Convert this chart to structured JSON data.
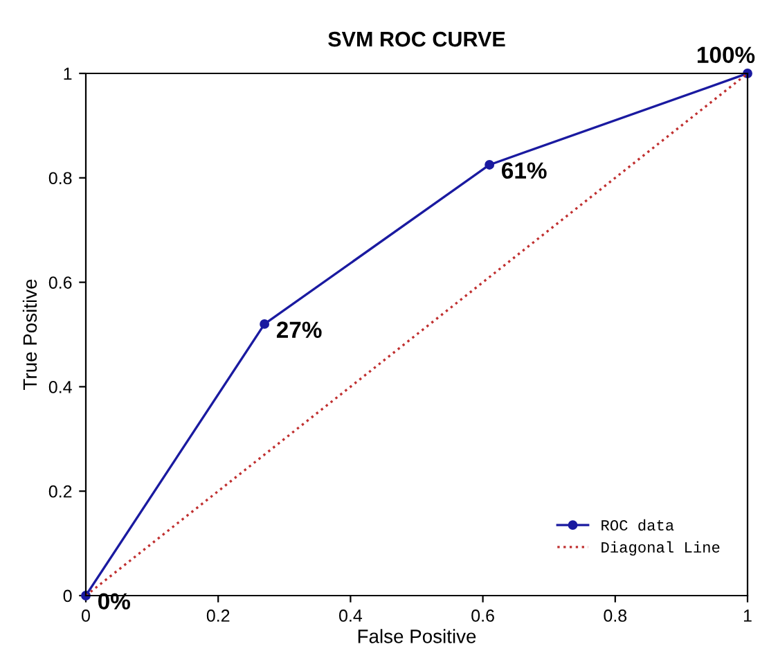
{
  "chart_data": {
    "type": "line",
    "title": "SVM ROC CURVE",
    "xlabel": "False Positive",
    "ylabel": "True Positive",
    "xlim": [
      0,
      1
    ],
    "ylim": [
      0,
      1
    ],
    "xticks": [
      0,
      0.2,
      0.4,
      0.6,
      0.8,
      1
    ],
    "yticks": [
      0,
      0.2,
      0.4,
      0.6,
      0.8,
      1
    ],
    "annotations": [
      {
        "text": "0%",
        "x": 0,
        "y": 0
      },
      {
        "text": "27%",
        "x": 0.27,
        "y": 0.52
      },
      {
        "text": "61%",
        "x": 0.61,
        "y": 0.825
      },
      {
        "text": "100%",
        "x": 1,
        "y": 1
      }
    ],
    "grid": false,
    "legend": "bottom right",
    "series": [
      {
        "name": "ROC data",
        "color": "#1a1aa0",
        "x": [
          0,
          0.27,
          0.61,
          1
        ],
        "values": [
          0,
          0.52,
          0.825,
          1
        ],
        "marker": "circle",
        "line_style": "solid"
      },
      {
        "name": "Diagonal Line",
        "color": "#c03030",
        "x": [
          0,
          1
        ],
        "values": [
          0,
          1
        ],
        "marker": "none",
        "line_style": "dotted"
      }
    ]
  }
}
